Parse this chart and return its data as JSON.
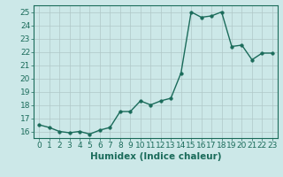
{
  "x": [
    0,
    1,
    2,
    3,
    4,
    5,
    6,
    7,
    8,
    9,
    10,
    11,
    12,
    13,
    14,
    15,
    16,
    17,
    18,
    19,
    20,
    21,
    22,
    23
  ],
  "y": [
    16.5,
    16.3,
    16.0,
    15.9,
    16.0,
    15.8,
    16.1,
    16.3,
    17.5,
    17.5,
    18.3,
    18.0,
    18.3,
    18.5,
    20.4,
    25.0,
    24.6,
    24.7,
    25.0,
    22.4,
    22.5,
    21.4,
    21.9,
    21.9
  ],
  "line_color": "#1a6b5a",
  "marker_color": "#1a6b5a",
  "bg_color": "#cce8e8",
  "grid_color": "#b0c8c8",
  "axis_color": "#1a6b5a",
  "xlabel": "Humidex (Indice chaleur)",
  "xlim": [
    -0.5,
    23.5
  ],
  "ylim": [
    15.5,
    25.5
  ],
  "yticks": [
    16,
    17,
    18,
    19,
    20,
    21,
    22,
    23,
    24,
    25
  ],
  "xticks": [
    0,
    1,
    2,
    3,
    4,
    5,
    6,
    7,
    8,
    9,
    10,
    11,
    12,
    13,
    14,
    15,
    16,
    17,
    18,
    19,
    20,
    21,
    22,
    23
  ],
  "xlabel_fontsize": 7.5,
  "tick_fontsize": 6.5,
  "line_width": 1.0,
  "marker_size": 2.5
}
